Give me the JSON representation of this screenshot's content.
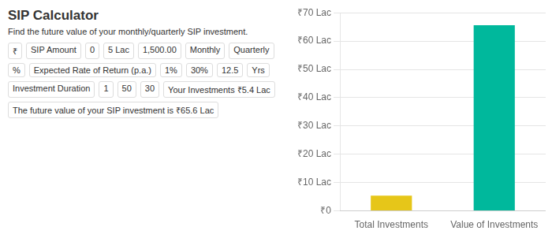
{
  "chart_data": {
    "type": "bar",
    "title": "SIP Calculator",
    "subtitle": "Find the future value of your monthly/quarterly SIP investment.",
    "annotations": [
      "₹",
      "SIP Amount",
      "0",
      "5 Lac",
      "1,500.00",
      "Monthly",
      "Quarterly",
      "%",
      "Expected Rate of Return (p.a.)",
      "1%",
      "30%",
      "12.5",
      "Yrs",
      "Investment Duration",
      "1",
      "50",
      "30",
      "Your Investments ₹5.4 Lac",
      "The future value of your SIP investment is ₹65.6 Lac"
    ],
    "categories": [
      "Total Investments",
      "Value of Investments"
    ],
    "values": [
      5.4,
      65.6
    ],
    "colors": [
      "#e6c619",
      "#00b89c"
    ],
    "ylim": [
      0,
      70
    ],
    "yticks": [
      {
        "value": 0,
        "label": "₹0"
      },
      {
        "value": 10,
        "label": "₹10 Lac"
      },
      {
        "value": 20,
        "label": "₹20 Lac"
      },
      {
        "value": 30,
        "label": "₹30 Lac"
      },
      {
        "value": 40,
        "label": "₹40 Lac"
      },
      {
        "value": 50,
        "label": "₹50 Lac"
      },
      {
        "value": 60,
        "label": "₹60 Lac"
      },
      {
        "value": 70,
        "label": "₹70 Lac"
      }
    ],
    "grid": true
  }
}
